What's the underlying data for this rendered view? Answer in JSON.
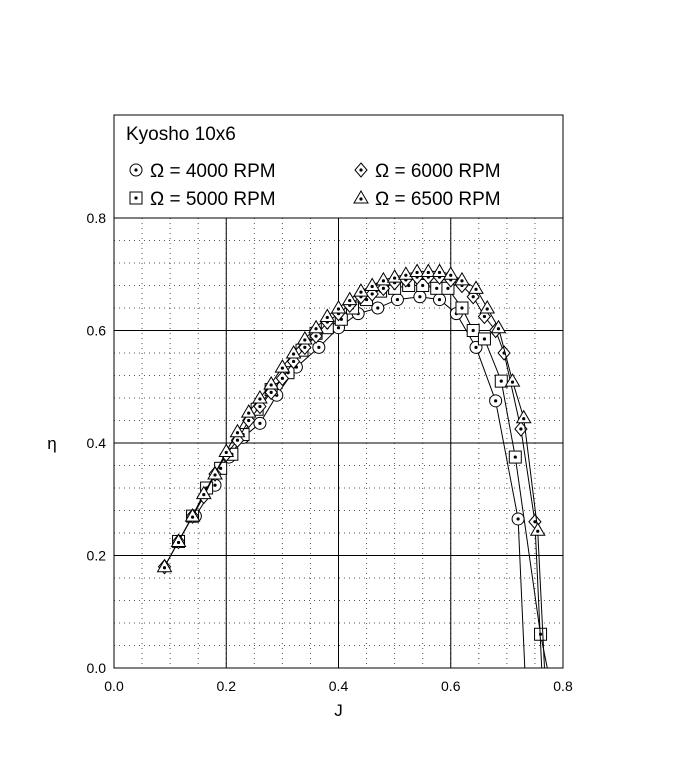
{
  "chart_data": {
    "type": "line",
    "title": "Kyosho 10x6",
    "xlabel": "J",
    "ylabel": "η",
    "xlim": [
      0.0,
      0.8
    ],
    "ylim": [
      0.0,
      0.8
    ],
    "xticks": [
      "0.0",
      "0.2",
      "0.4",
      "0.6",
      "0.8"
    ],
    "yticks": [
      "0.0",
      "0.2",
      "0.4",
      "0.6",
      "0.8"
    ],
    "grid": true,
    "legend_position": "top",
    "series": [
      {
        "name": "Ω = 4000 RPM",
        "marker": "circle",
        "x": [
          0.145,
          0.18,
          0.205,
          0.23,
          0.26,
          0.29,
          0.325,
          0.365,
          0.4,
          0.435,
          0.47,
          0.505,
          0.545,
          0.58,
          0.61,
          0.645,
          0.68,
          0.72
        ],
        "y": [
          0.27,
          0.325,
          0.375,
          0.41,
          0.435,
          0.485,
          0.535,
          0.57,
          0.605,
          0.63,
          0.64,
          0.655,
          0.66,
          0.655,
          0.63,
          0.57,
          0.475,
          0.265
        ]
      },
      {
        "name": "Ω = 5000 RPM",
        "marker": "square",
        "x": [
          0.115,
          0.14,
          0.165,
          0.19,
          0.21,
          0.23,
          0.255,
          0.28,
          0.31,
          0.335,
          0.36,
          0.38,
          0.405,
          0.425,
          0.45,
          0.475,
          0.5,
          0.525,
          0.55,
          0.575,
          0.595,
          0.62,
          0.64,
          0.66,
          0.69,
          0.715,
          0.76
        ],
        "y": [
          0.225,
          0.27,
          0.32,
          0.355,
          0.38,
          0.415,
          0.46,
          0.495,
          0.525,
          0.565,
          0.595,
          0.605,
          0.62,
          0.64,
          0.655,
          0.67,
          0.675,
          0.68,
          0.68,
          0.675,
          0.675,
          0.64,
          0.6,
          0.585,
          0.51,
          0.375,
          0.06
        ]
      },
      {
        "name": "Ω = 6000 RPM",
        "marker": "diamond",
        "x": [
          0.09,
          0.115,
          0.14,
          0.16,
          0.18,
          0.2,
          0.22,
          0.24,
          0.26,
          0.28,
          0.3,
          0.32,
          0.34,
          0.36,
          0.38,
          0.4,
          0.42,
          0.44,
          0.46,
          0.48,
          0.5,
          0.52,
          0.54,
          0.56,
          0.58,
          0.6,
          0.62,
          0.64,
          0.66,
          0.68,
          0.695,
          0.725,
          0.75
        ],
        "y": [
          0.18,
          0.225,
          0.27,
          0.305,
          0.345,
          0.38,
          0.405,
          0.44,
          0.465,
          0.49,
          0.515,
          0.545,
          0.57,
          0.59,
          0.615,
          0.63,
          0.645,
          0.66,
          0.665,
          0.675,
          0.685,
          0.69,
          0.695,
          0.695,
          0.695,
          0.69,
          0.68,
          0.66,
          0.625,
          0.6,
          0.56,
          0.425,
          0.26
        ]
      },
      {
        "name": "Ω = 6500 RPM",
        "marker": "triangle",
        "x": [
          0.09,
          0.115,
          0.14,
          0.16,
          0.18,
          0.2,
          0.22,
          0.24,
          0.26,
          0.28,
          0.3,
          0.32,
          0.34,
          0.36,
          0.38,
          0.4,
          0.42,
          0.44,
          0.46,
          0.48,
          0.5,
          0.52,
          0.54,
          0.56,
          0.58,
          0.6,
          0.62,
          0.645,
          0.665,
          0.685,
          0.71,
          0.73,
          0.755
        ],
        "y": [
          0.18,
          0.225,
          0.27,
          0.31,
          0.345,
          0.385,
          0.42,
          0.455,
          0.48,
          0.505,
          0.535,
          0.56,
          0.585,
          0.605,
          0.625,
          0.64,
          0.655,
          0.67,
          0.68,
          0.69,
          0.695,
          0.7,
          0.705,
          0.705,
          0.705,
          0.7,
          0.69,
          0.675,
          0.64,
          0.605,
          0.51,
          0.445,
          0.245
        ]
      }
    ]
  }
}
